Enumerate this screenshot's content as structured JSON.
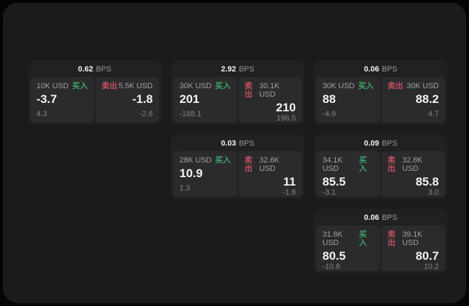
{
  "page": {
    "background": "#050505",
    "panel_background": "#1b1b1d",
    "card_background": "#212123",
    "cell_background": "#2b2b2d"
  },
  "colors": {
    "buy_green": "#3fa566",
    "sell_red": "#c24f60",
    "value_white": "#f4f4f5",
    "muted_gray": "#98989d"
  },
  "labels": {
    "bps": "BPS",
    "buy": "买入",
    "sell": "卖出"
  },
  "cards": [
    {
      "row": 1,
      "col": 1,
      "bps": "0.62",
      "buy": {
        "amount": "10K USD",
        "value": "-3.7",
        "delta": "4.3"
      },
      "sell": {
        "amount": "5.5K USD",
        "value": "-1.8",
        "delta": "-2.6"
      }
    },
    {
      "row": 1,
      "col": 2,
      "bps": "2.92",
      "buy": {
        "amount": "30K USD",
        "value": "201",
        "delta": "-188.1"
      },
      "sell": {
        "amount": "30.1K USD",
        "value": "210",
        "delta": "196.5"
      }
    },
    {
      "row": 1,
      "col": 3,
      "bps": "0.06",
      "buy": {
        "amount": "30K USD",
        "value": "88",
        "delta": "-4.9"
      },
      "sell": {
        "amount": "30K USD",
        "value": "88.2",
        "delta": "4.7"
      }
    },
    {
      "row": 2,
      "col": 2,
      "bps": "0.03",
      "buy": {
        "amount": "28K USD",
        "value": "10.9",
        "delta": "1.3"
      },
      "sell": {
        "amount": "32.6K USD",
        "value": "11",
        "delta": "-1.8"
      }
    },
    {
      "row": 2,
      "col": 3,
      "bps": "0.09",
      "buy": {
        "amount": "34.1K USD",
        "value": "85.5",
        "delta": "-3.1"
      },
      "sell": {
        "amount": "32.8K USD",
        "value": "85.8",
        "delta": "3.0"
      }
    },
    {
      "row": 3,
      "col": 3,
      "bps": "0.06",
      "buy": {
        "amount": "31.8K USD",
        "value": "80.5",
        "delta": "-10.8"
      },
      "sell": {
        "amount": "39.1K USD",
        "value": "80.7",
        "delta": "10.2"
      }
    }
  ]
}
